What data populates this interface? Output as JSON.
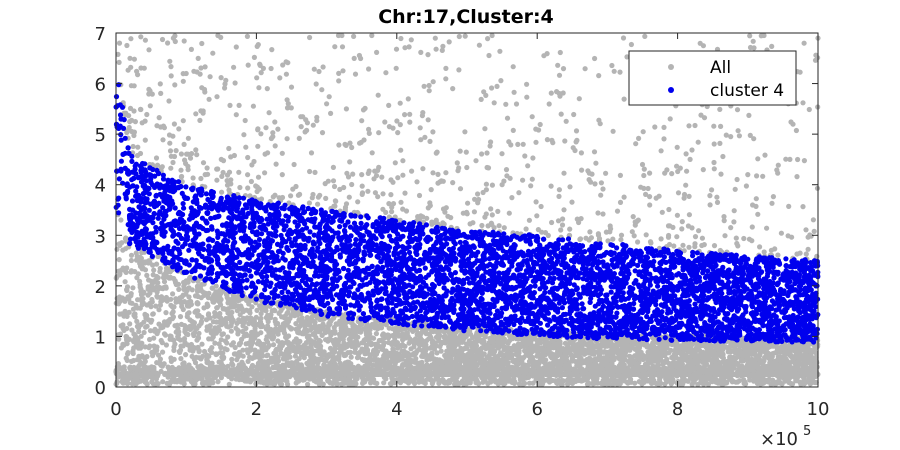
{
  "chart_data": {
    "type": "scatter",
    "title": "Chr:17,Cluster:4",
    "xlabel": "",
    "ylabel": "",
    "xlim": [
      0,
      1000000
    ],
    "ylim": [
      0,
      7
    ],
    "x_ticks": [
      0,
      200000,
      400000,
      600000,
      800000,
      1000000
    ],
    "x_tick_labels": [
      "0",
      "2",
      "4",
      "6",
      "8",
      "10"
    ],
    "x_exponent_base": "×10",
    "x_exponent_power": "5",
    "y_ticks": [
      0,
      1,
      2,
      3,
      4,
      5,
      6,
      7
    ],
    "y_tick_labels": [
      "0",
      "1",
      "2",
      "3",
      "4",
      "5",
      "6",
      "7"
    ],
    "grid": false,
    "legend_position": "top-right",
    "series": [
      {
        "name": "All",
        "color": "#b4b4b4",
        "description_points": "dense gray cloud; band roughly from 0 to ~2 across x, plus a low strip near 0.1-0.4 and sparse outliers up to 7",
        "sample_points": [
          [
            5000,
            6.8
          ],
          [
            20000,
            6.5
          ],
          [
            100000,
            6.2
          ],
          [
            210000,
            6.3
          ],
          [
            300000,
            5.6
          ],
          [
            470000,
            6.3
          ],
          [
            660000,
            5.7
          ],
          [
            1000000,
            6.9
          ],
          [
            150000,
            4.5
          ],
          [
            350000,
            4.2
          ],
          [
            550000,
            4.0
          ],
          [
            750000,
            4.4
          ],
          [
            900000,
            4.2
          ],
          [
            960000,
            4.5
          ]
        ]
      },
      {
        "name": "cluster 4",
        "color": "#0000ee",
        "description_points": "dense blue band decreasing from ~3.5-6.4 at x=0 to ~0.9-2.5 at x=1e6",
        "band_upper": [
          [
            0,
            6.4
          ],
          [
            20000,
            4.6
          ],
          [
            100000,
            4.0
          ],
          [
            200000,
            3.7
          ],
          [
            300000,
            3.5
          ],
          [
            400000,
            3.3
          ],
          [
            500000,
            3.1
          ],
          [
            600000,
            3.0
          ],
          [
            700000,
            2.85
          ],
          [
            800000,
            2.7
          ],
          [
            900000,
            2.6
          ],
          [
            1000000,
            2.5
          ]
        ],
        "band_lower": [
          [
            0,
            3.5
          ],
          [
            20000,
            2.8
          ],
          [
            100000,
            2.2
          ],
          [
            200000,
            1.7
          ],
          [
            300000,
            1.4
          ],
          [
            400000,
            1.25
          ],
          [
            500000,
            1.1
          ],
          [
            600000,
            1.0
          ],
          [
            700000,
            0.95
          ],
          [
            800000,
            0.92
          ],
          [
            900000,
            0.9
          ],
          [
            1000000,
            0.88
          ]
        ]
      }
    ]
  }
}
